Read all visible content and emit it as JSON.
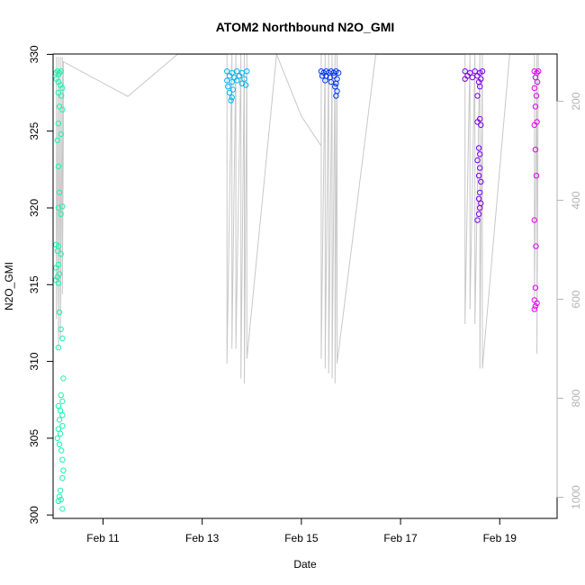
{
  "chart_data": {
    "type": "scatter",
    "title": "ATOM2 Northbound N2O_GMI",
    "xlabel": "Date",
    "ylabel": "N2O_GMI",
    "x_ticks": [
      "Feb 11",
      "Feb 13",
      "Feb 15",
      "Feb 17",
      "Feb 19"
    ],
    "x_tick_days": [
      11,
      13,
      15,
      17,
      19
    ],
    "xlim": [
      10.0,
      20.15
    ],
    "ylim": [
      299.8,
      330
    ],
    "y_ticks": [
      300,
      305,
      310,
      315,
      320,
      325,
      330
    ],
    "right_axis": {
      "ticks": [
        200,
        400,
        600,
        800,
        1000
      ],
      "lim": [
        1042,
        105
      ],
      "color": "#b3b3b3"
    },
    "grid": false,
    "legend": "none",
    "pressure_track_color": "#c8c8c8",
    "series": [
      {
        "color": "#1cf2b0",
        "points": [
          [
            10.05,
            328.8
          ],
          [
            10.08,
            328.9
          ],
          [
            10.1,
            328.7
          ],
          [
            10.12,
            328.8
          ],
          [
            10.15,
            328.9
          ],
          [
            10.06,
            328.4
          ],
          [
            10.1,
            328.2
          ],
          [
            10.14,
            328.0
          ],
          [
            10.18,
            327.8
          ],
          [
            10.1,
            327.5
          ],
          [
            10.16,
            327.3
          ],
          [
            10.12,
            326.6
          ],
          [
            10.18,
            326.4
          ],
          [
            10.1,
            325.5
          ],
          [
            10.15,
            324.8
          ],
          [
            10.08,
            324.4
          ],
          [
            10.1,
            322.7
          ],
          [
            10.12,
            321.0
          ],
          [
            10.1,
            320.0
          ],
          [
            10.18,
            320.1
          ],
          [
            10.15,
            319.6
          ],
          [
            10.05,
            317.6
          ],
          [
            10.1,
            317.5
          ],
          [
            10.08,
            317.2
          ],
          [
            10.15,
            317.0
          ],
          [
            10.1,
            316.3
          ],
          [
            10.05,
            316.1
          ],
          [
            10.12,
            315.7
          ],
          [
            10.08,
            315.5
          ],
          [
            10.05,
            315.3
          ],
          [
            10.1,
            315.1
          ],
          [
            10.12,
            313.2
          ],
          [
            10.15,
            312.1
          ],
          [
            10.18,
            311.5
          ],
          [
            10.1,
            310.9
          ],
          [
            10.2,
            308.9
          ],
          [
            10.15,
            307.8
          ],
          [
            10.18,
            307.4
          ],
          [
            10.1,
            307.1
          ],
          [
            10.14,
            306.8
          ],
          [
            10.18,
            306.5
          ],
          [
            10.12,
            306.2
          ],
          [
            10.18,
            305.8
          ],
          [
            10.1,
            305.6
          ],
          [
            10.14,
            305.3
          ],
          [
            10.08,
            305.0
          ],
          [
            10.12,
            304.6
          ],
          [
            10.16,
            304.2
          ],
          [
            10.18,
            303.6
          ],
          [
            10.2,
            302.9
          ],
          [
            10.18,
            302.4
          ],
          [
            10.14,
            301.6
          ],
          [
            10.12,
            301.2
          ],
          [
            10.15,
            301.0
          ],
          [
            10.1,
            300.9
          ],
          [
            10.18,
            300.4
          ]
        ]
      },
      {
        "color": "#00b6f2",
        "points": [
          [
            13.5,
            328.9
          ],
          [
            13.6,
            328.8
          ],
          [
            13.7,
            328.9
          ],
          [
            13.8,
            328.8
          ],
          [
            13.9,
            328.9
          ],
          [
            13.55,
            328.6
          ],
          [
            13.65,
            328.5
          ],
          [
            13.75,
            328.6
          ],
          [
            13.85,
            328.4
          ],
          [
            13.5,
            328.3
          ],
          [
            13.6,
            328.2
          ],
          [
            13.7,
            328.3
          ],
          [
            13.8,
            328.1
          ],
          [
            13.88,
            328.0
          ],
          [
            13.52,
            327.9
          ],
          [
            13.62,
            327.7
          ],
          [
            13.55,
            327.5
          ],
          [
            13.6,
            327.2
          ],
          [
            13.58,
            327.0
          ]
        ]
      },
      {
        "color": "#0039f2",
        "points": [
          [
            15.4,
            328.9
          ],
          [
            15.45,
            328.8
          ],
          [
            15.5,
            328.9
          ],
          [
            15.55,
            328.8
          ],
          [
            15.6,
            328.9
          ],
          [
            15.65,
            328.8
          ],
          [
            15.7,
            328.9
          ],
          [
            15.75,
            328.8
          ],
          [
            15.42,
            328.6
          ],
          [
            15.5,
            328.6
          ],
          [
            15.58,
            328.5
          ],
          [
            15.66,
            328.6
          ],
          [
            15.72,
            328.4
          ],
          [
            15.48,
            328.3
          ],
          [
            15.6,
            328.2
          ],
          [
            15.7,
            328.1
          ],
          [
            15.68,
            327.9
          ],
          [
            15.72,
            327.6
          ],
          [
            15.7,
            327.3
          ]
        ]
      },
      {
        "color": "#7a00f2",
        "points": [
          [
            18.3,
            328.9
          ],
          [
            18.4,
            328.8
          ],
          [
            18.5,
            328.9
          ],
          [
            18.6,
            328.8
          ],
          [
            18.65,
            328.9
          ],
          [
            18.35,
            328.6
          ],
          [
            18.45,
            328.5
          ],
          [
            18.55,
            328.6
          ],
          [
            18.62,
            328.4
          ],
          [
            18.3,
            328.4
          ],
          [
            18.58,
            328.2
          ],
          [
            18.6,
            327.9
          ],
          [
            18.55,
            327.3
          ],
          [
            18.6,
            325.8
          ],
          [
            18.55,
            325.6
          ],
          [
            18.62,
            325.4
          ],
          [
            18.58,
            323.9
          ],
          [
            18.6,
            323.5
          ],
          [
            18.55,
            323.1
          ],
          [
            18.6,
            322.6
          ],
          [
            18.58,
            322.1
          ],
          [
            18.62,
            321.7
          ],
          [
            18.6,
            321.0
          ],
          [
            18.58,
            320.6
          ],
          [
            18.62,
            320.3
          ],
          [
            18.6,
            320.0
          ],
          [
            18.58,
            319.6
          ],
          [
            18.55,
            319.2
          ]
        ]
      },
      {
        "color": "#e600f2",
        "points": [
          [
            19.7,
            328.9
          ],
          [
            19.75,
            328.8
          ],
          [
            19.78,
            328.9
          ],
          [
            19.72,
            328.5
          ],
          [
            19.76,
            328.2
          ],
          [
            19.7,
            327.8
          ],
          [
            19.74,
            327.3
          ],
          [
            19.72,
            326.6
          ],
          [
            19.75,
            325.6
          ],
          [
            19.7,
            325.4
          ],
          [
            19.72,
            323.8
          ],
          [
            19.74,
            322.1
          ],
          [
            19.7,
            319.2
          ],
          [
            19.73,
            317.5
          ],
          [
            19.72,
            314.8
          ],
          [
            19.7,
            314.0
          ],
          [
            19.75,
            313.8
          ],
          [
            19.72,
            313.6
          ],
          [
            19.7,
            313.4
          ]
        ]
      }
    ],
    "pressure_track": [
      [
        10.06,
        110
      ],
      [
        10.06,
        640
      ],
      [
        10.1,
        110
      ],
      [
        10.1,
        700
      ],
      [
        10.14,
        110
      ],
      [
        10.14,
        680
      ],
      [
        10.18,
        110
      ],
      [
        10.18,
        590
      ],
      [
        10.2,
        280
      ],
      [
        10.2,
        120
      ],
      [
        11.5,
        190
      ],
      [
        12.5,
        105
      ],
      [
        13.5,
        105
      ],
      [
        13.5,
        730
      ],
      [
        13.6,
        105
      ],
      [
        13.6,
        700
      ],
      [
        13.68,
        105
      ],
      [
        13.68,
        700
      ],
      [
        13.78,
        105
      ],
      [
        13.78,
        760
      ],
      [
        13.85,
        105
      ],
      [
        13.85,
        770
      ],
      [
        13.9,
        105
      ],
      [
        13.9,
        720
      ],
      [
        14.5,
        105
      ],
      [
        15.0,
        230
      ],
      [
        15.4,
        290
      ],
      [
        15.4,
        105
      ],
      [
        15.4,
        720
      ],
      [
        15.48,
        105
      ],
      [
        15.48,
        740
      ],
      [
        15.55,
        105
      ],
      [
        15.55,
        750
      ],
      [
        15.62,
        105
      ],
      [
        15.62,
        760
      ],
      [
        15.68,
        105
      ],
      [
        15.68,
        770
      ],
      [
        15.72,
        105
      ],
      [
        15.72,
        730
      ],
      [
        16.5,
        105
      ],
      [
        18.3,
        105
      ],
      [
        18.3,
        105
      ],
      [
        18.3,
        650
      ],
      [
        18.4,
        105
      ],
      [
        18.4,
        620
      ],
      [
        18.5,
        105
      ],
      [
        18.5,
        650
      ],
      [
        18.6,
        105
      ],
      [
        18.6,
        740
      ],
      [
        18.65,
        105
      ],
      [
        18.65,
        740
      ],
      [
        19.2,
        105
      ],
      [
        19.7,
        105
      ],
      [
        19.7,
        105
      ],
      [
        19.7,
        600
      ],
      [
        19.75,
        105
      ],
      [
        19.75,
        710
      ],
      [
        19.78,
        105
      ]
    ]
  }
}
